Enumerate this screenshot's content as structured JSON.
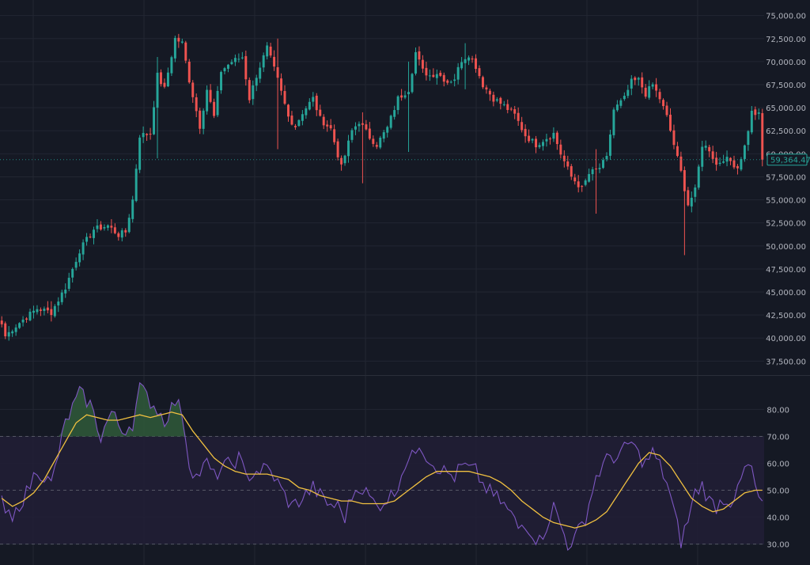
{
  "theme": {
    "background": "#151924",
    "grid": "#222632",
    "up_color": "#26a69a",
    "down_color": "#ef5350",
    "rsi_color": "#7e57c2",
    "rsi_ma_color": "#f0c040",
    "rsi_band_fill": "#211e36",
    "overbought_fill": "#2f5a3a",
    "label_color": "#b2b5be",
    "last_price_color": "#26a69a"
  },
  "chart_data": [
    {
      "type": "candlestick",
      "name": "price",
      "ylim": [
        36500,
        76000
      ],
      "y_ticks": [
        "75,000.00",
        "72,500.00",
        "70,000.00",
        "67,500.00",
        "65,000.00",
        "62,500.00",
        "60,000.00",
        "57,500.00",
        "55,000.00",
        "52,500.00",
        "50,000.00",
        "47,500.00",
        "45,000.00",
        "42,500.00",
        "40,000.00",
        "37,500.00"
      ],
      "last_price_label": "59,364.47",
      "last_price": 59364.47,
      "close_anchors": [
        [
          0,
          41500
        ],
        [
          1,
          40200
        ],
        [
          3,
          41000
        ],
        [
          6,
          42000
        ],
        [
          10,
          43200
        ],
        [
          14,
          42800
        ],
        [
          18,
          45500
        ],
        [
          22,
          49500
        ],
        [
          26,
          51800
        ],
        [
          30,
          52200
        ],
        [
          33,
          51200
        ],
        [
          35,
          51500
        ],
        [
          37,
          55000
        ],
        [
          39,
          62000
        ],
        [
          42,
          62200
        ],
        [
          44,
          68500
        ],
        [
          46,
          67000
        ],
        [
          49,
          72500
        ],
        [
          51,
          72000
        ],
        [
          53,
          68000
        ],
        [
          56,
          63000
        ],
        [
          58,
          67000
        ],
        [
          60,
          64000
        ],
        [
          62,
          69000
        ],
        [
          65,
          70000
        ],
        [
          68,
          70500
        ],
        [
          70,
          66000
        ],
        [
          72,
          68500
        ],
        [
          75,
          71500
        ],
        [
          78,
          68000
        ],
        [
          81,
          64000
        ],
        [
          83,
          63000
        ],
        [
          85,
          64500
        ],
        [
          88,
          66000
        ],
        [
          90,
          63800
        ],
        [
          93,
          62700
        ],
        [
          96,
          58500
        ],
        [
          99,
          62500
        ],
        [
          101,
          63500
        ],
        [
          104,
          61800
        ],
        [
          106,
          61000
        ],
        [
          109,
          62800
        ],
        [
          112,
          66000
        ],
        [
          115,
          67000
        ],
        [
          117,
          71000
        ],
        [
          119,
          69000
        ],
        [
          121,
          68500
        ],
        [
          123,
          68800
        ],
        [
          126,
          67800
        ],
        [
          128,
          68200
        ],
        [
          130,
          70200
        ],
        [
          132,
          70800
        ],
        [
          134,
          69500
        ],
        [
          136,
          67500
        ],
        [
          139,
          66000
        ],
        [
          142,
          65200
        ],
        [
          145,
          64200
        ],
        [
          148,
          62000
        ],
        [
          151,
          61000
        ],
        [
          153,
          61500
        ],
        [
          156,
          62200
        ],
        [
          158,
          60000
        ],
        [
          161,
          57500
        ],
        [
          164,
          56200
        ],
        [
          166,
          57800
        ],
        [
          169,
          58500
        ],
        [
          171,
          59500
        ],
        [
          173,
          64800
        ],
        [
          176,
          66000
        ],
        [
          178,
          67800
        ],
        [
          180,
          68000
        ],
        [
          182,
          66500
        ],
        [
          184,
          67500
        ],
        [
          186,
          66000
        ],
        [
          188,
          64000
        ],
        [
          190,
          61000
        ],
        [
          192,
          58000
        ],
        [
          194,
          54500
        ],
        [
          196,
          56000
        ],
        [
          198,
          61000
        ],
        [
          200,
          60500
        ],
        [
          202,
          58800
        ],
        [
          204,
          59500
        ],
        [
          206,
          59200
        ],
        [
          208,
          58500
        ],
        [
          210,
          60800
        ],
        [
          212,
          64500
        ],
        [
          214,
          64200
        ],
        [
          215,
          59364.47
        ]
      ],
      "wick_spikes": [
        [
          14,
          44000,
          41800
        ],
        [
          44,
          70500,
          59500
        ],
        [
          102,
          64500,
          56800
        ],
        [
          168,
          60500,
          53500
        ],
        [
          193,
          57000,
          49000
        ],
        [
          78,
          72500,
          60500
        ],
        [
          115,
          70000,
          60200
        ],
        [
          131,
          72000,
          67000
        ]
      ]
    },
    {
      "type": "line",
      "name": "rsi",
      "ylim": [
        24,
        91
      ],
      "y_ticks": [
        "80.00",
        "70.00",
        "60.00",
        "50.00",
        "40.00",
        "30.00"
      ],
      "overbought": 70,
      "oversold": 30,
      "midline": 50,
      "rsi_anchors": [
        [
          0,
          48
        ],
        [
          1,
          42
        ],
        [
          3,
          38
        ],
        [
          5,
          45
        ],
        [
          7,
          49
        ],
        [
          10,
          58
        ],
        [
          14,
          52
        ],
        [
          18,
          75
        ],
        [
          22,
          86
        ],
        [
          25,
          82
        ],
        [
          28,
          70
        ],
        [
          31,
          79
        ],
        [
          34,
          72
        ],
        [
          37,
          75
        ],
        [
          39,
          88
        ],
        [
          42,
          83
        ],
        [
          44,
          80
        ],
        [
          46,
          76
        ],
        [
          49,
          83
        ],
        [
          51,
          79
        ],
        [
          53,
          60
        ],
        [
          55,
          55
        ],
        [
          58,
          60
        ],
        [
          60,
          55
        ],
        [
          62,
          58
        ],
        [
          65,
          60
        ],
        [
          67,
          62
        ],
        [
          69,
          55
        ],
        [
          72,
          57
        ],
        [
          75,
          58
        ],
        [
          77,
          55
        ],
        [
          80,
          48
        ],
        [
          82,
          44
        ],
        [
          85,
          47
        ],
        [
          88,
          51
        ],
        [
          90,
          48
        ],
        [
          92,
          45
        ],
        [
          95,
          44
        ],
        [
          97,
          40
        ],
        [
          99,
          48
        ],
        [
          101,
          52
        ],
        [
          103,
          49
        ],
        [
          106,
          44
        ],
        [
          109,
          47
        ],
        [
          111,
          49
        ],
        [
          114,
          60
        ],
        [
          116,
          62
        ],
        [
          118,
          68
        ],
        [
          120,
          63
        ],
        [
          122,
          60
        ],
        [
          125,
          57
        ],
        [
          128,
          55
        ],
        [
          130,
          59
        ],
        [
          132,
          58
        ],
        [
          134,
          57
        ],
        [
          136,
          52
        ],
        [
          139,
          48
        ],
        [
          141,
          46
        ],
        [
          144,
          41
        ],
        [
          146,
          36
        ],
        [
          148,
          38
        ],
        [
          150,
          34
        ],
        [
          152,
          31
        ],
        [
          154,
          37
        ],
        [
          156,
          44
        ],
        [
          158,
          37
        ],
        [
          160,
          30
        ],
        [
          162,
          32
        ],
        [
          165,
          40
        ],
        [
          168,
          55
        ],
        [
          170,
          59
        ],
        [
          172,
          63
        ],
        [
          174,
          62
        ],
        [
          176,
          65
        ],
        [
          178,
          68
        ],
        [
          180,
          63
        ],
        [
          182,
          60
        ],
        [
          184,
          64
        ],
        [
          186,
          59
        ],
        [
          188,
          53
        ],
        [
          190,
          42
        ],
        [
          192,
          31
        ],
        [
          194,
          39
        ],
        [
          196,
          49
        ],
        [
          198,
          52
        ],
        [
          200,
          46
        ],
        [
          202,
          44
        ],
        [
          204,
          47
        ],
        [
          206,
          46
        ],
        [
          208,
          49
        ],
        [
          210,
          58
        ],
        [
          212,
          58
        ],
        [
          214,
          45
        ],
        [
          215,
          46
        ]
      ],
      "ma_anchors": [
        [
          0,
          47
        ],
        [
          3,
          44
        ],
        [
          6,
          46
        ],
        [
          9,
          49
        ],
        [
          12,
          54
        ],
        [
          15,
          61
        ],
        [
          18,
          68
        ],
        [
          21,
          75
        ],
        [
          24,
          78
        ],
        [
          27,
          77
        ],
        [
          30,
          76
        ],
        [
          33,
          76
        ],
        [
          36,
          77
        ],
        [
          39,
          78
        ],
        [
          42,
          77
        ],
        [
          45,
          78
        ],
        [
          48,
          79
        ],
        [
          51,
          78
        ],
        [
          54,
          72
        ],
        [
          57,
          67
        ],
        [
          60,
          62
        ],
        [
          63,
          59
        ],
        [
          66,
          57
        ],
        [
          69,
          56
        ],
        [
          72,
          56
        ],
        [
          75,
          56
        ],
        [
          78,
          55
        ],
        [
          81,
          54
        ],
        [
          84,
          51
        ],
        [
          87,
          50
        ],
        [
          90,
          48
        ],
        [
          93,
          47
        ],
        [
          96,
          46
        ],
        [
          99,
          46
        ],
        [
          102,
          45
        ],
        [
          105,
          45
        ],
        [
          108,
          45
        ],
        [
          111,
          46
        ],
        [
          114,
          49
        ],
        [
          117,
          52
        ],
        [
          120,
          55
        ],
        [
          123,
          57
        ],
        [
          126,
          57
        ],
        [
          129,
          57
        ],
        [
          132,
          57
        ],
        [
          135,
          56
        ],
        [
          138,
          55
        ],
        [
          141,
          53
        ],
        [
          144,
          50
        ],
        [
          147,
          46
        ],
        [
          150,
          43
        ],
        [
          153,
          40
        ],
        [
          156,
          38
        ],
        [
          159,
          37
        ],
        [
          162,
          36
        ],
        [
          165,
          37
        ],
        [
          168,
          39
        ],
        [
          171,
          42
        ],
        [
          174,
          48
        ],
        [
          177,
          54
        ],
        [
          180,
          60
        ],
        [
          183,
          64
        ],
        [
          186,
          63
        ],
        [
          189,
          59
        ],
        [
          192,
          53
        ],
        [
          195,
          47
        ],
        [
          198,
          44
        ],
        [
          201,
          42
        ],
        [
          204,
          43
        ],
        [
          207,
          46
        ],
        [
          210,
          49
        ],
        [
          213,
          50
        ],
        [
          215,
          50
        ]
      ]
    }
  ]
}
